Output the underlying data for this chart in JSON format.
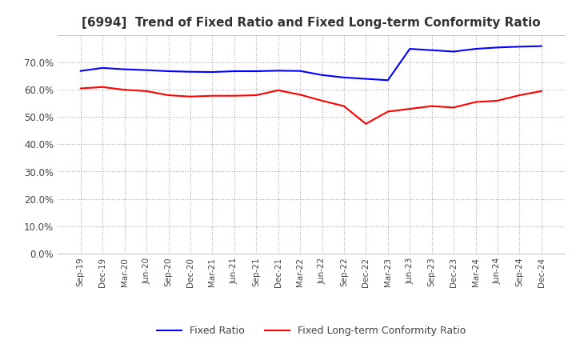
{
  "title": "[6994]  Trend of Fixed Ratio and Fixed Long-term Conformity Ratio",
  "x_labels": [
    "Sep-19",
    "Dec-19",
    "Mar-20",
    "Jun-20",
    "Sep-20",
    "Dec-20",
    "Mar-21",
    "Jun-21",
    "Sep-21",
    "Dec-21",
    "Mar-22",
    "Jun-22",
    "Sep-22",
    "Dec-22",
    "Mar-23",
    "Jun-23",
    "Sep-23",
    "Dec-23",
    "Mar-24",
    "Jun-24",
    "Sep-24",
    "Dec-24"
  ],
  "fixed_ratio": [
    0.669,
    0.68,
    0.675,
    0.672,
    0.668,
    0.666,
    0.665,
    0.668,
    0.668,
    0.67,
    0.669,
    0.654,
    0.645,
    0.64,
    0.635,
    0.75,
    0.745,
    0.74,
    0.75,
    0.755,
    0.758,
    0.76
  ],
  "fixed_lt_ratio": [
    0.605,
    0.61,
    0.6,
    0.595,
    0.58,
    0.575,
    0.578,
    0.578,
    0.58,
    0.598,
    0.582,
    0.56,
    0.54,
    0.475,
    0.52,
    0.53,
    0.54,
    0.535,
    0.555,
    0.56,
    0.58,
    0.595
  ],
  "fixed_ratio_color": "#0000ff",
  "fixed_lt_ratio_color": "#ff0000",
  "ylim": [
    0.0,
    0.8
  ],
  "yticks": [
    0.0,
    0.1,
    0.2,
    0.3,
    0.4,
    0.5,
    0.6,
    0.7
  ],
  "background_color": "#ffffff",
  "grid_color": "#aaaaaa",
  "title_fontsize": 11,
  "legend_fixed": "Fixed Ratio",
  "legend_fixed_lt": "Fixed Long-term Conformity Ratio"
}
